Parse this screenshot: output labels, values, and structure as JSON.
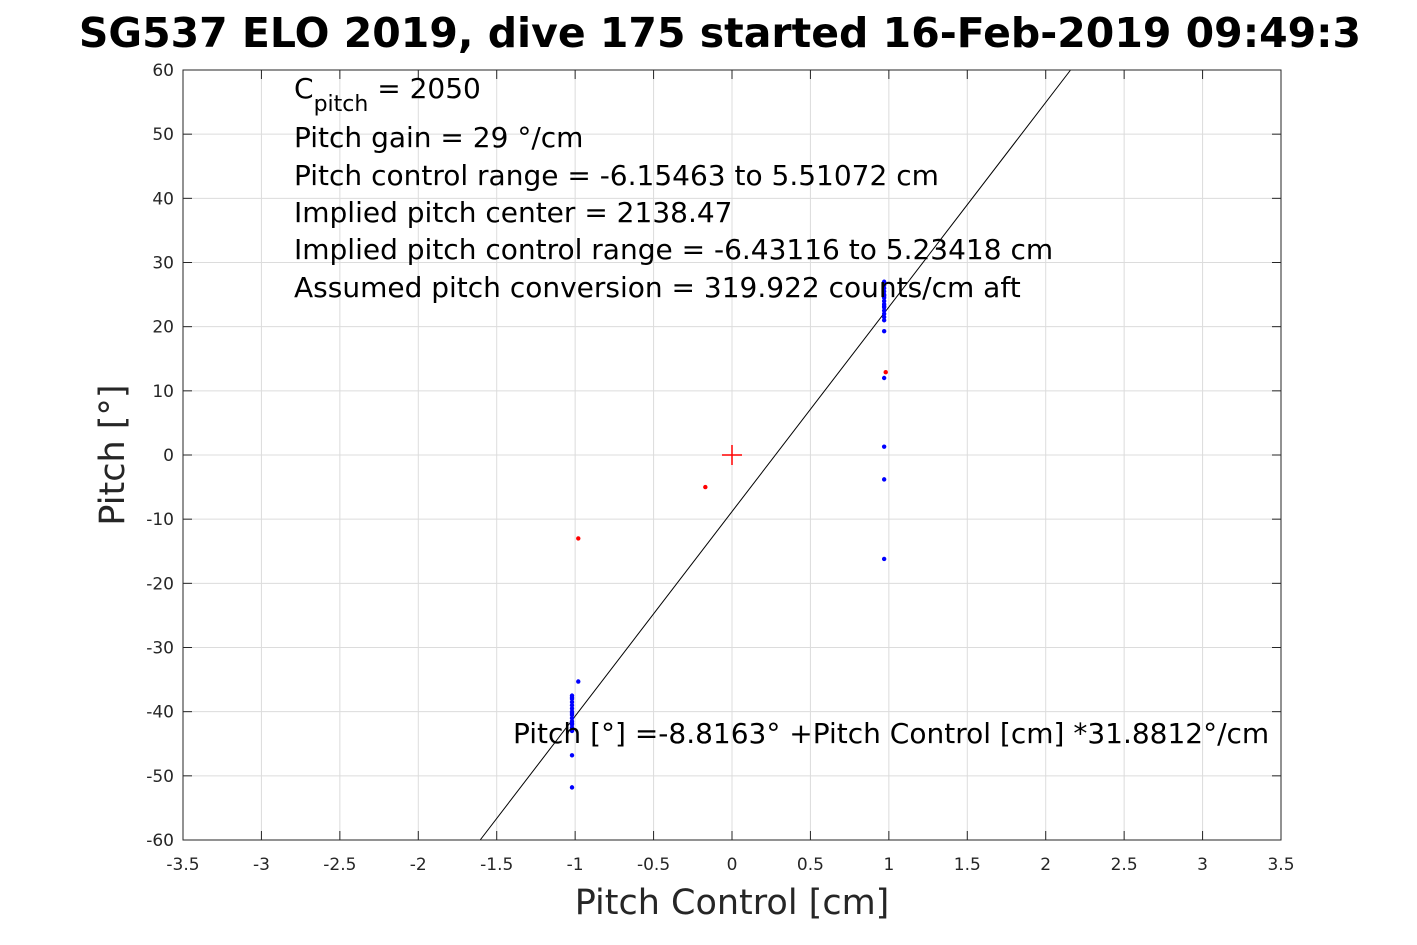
{
  "chart_data": {
    "type": "scatter",
    "title": "SG537 ELO 2019, dive 175 started 16-Feb-2019 09:49:3",
    "xlabel": "Pitch Control [cm]",
    "ylabel": "Pitch [°]",
    "xlim": [
      -3.5,
      3.5
    ],
    "ylim": [
      -60,
      60
    ],
    "xticks": [
      -3.5,
      -3,
      -2.5,
      -2,
      -1.5,
      -1,
      -0.5,
      0,
      0.5,
      1,
      1.5,
      2,
      2.5,
      3,
      3.5
    ],
    "xtick_labels": [
      "-3.5",
      "-3",
      "-2.5",
      "-2",
      "-1.5",
      "-1",
      "-0.5",
      "0",
      "0.5",
      "1",
      "1.5",
      "2",
      "2.5",
      "3",
      "3.5"
    ],
    "yticks": [
      60,
      50,
      40,
      30,
      20,
      10,
      0,
      -10,
      -20,
      -30,
      -40,
      -50,
      -60
    ],
    "ytick_labels": [
      "60",
      "50",
      "40",
      "30",
      "20",
      "10",
      "0",
      "-10",
      "-20",
      "-30",
      "-40",
      "-50",
      "-60"
    ],
    "grid": true,
    "series": [
      {
        "color": "#0000ff",
        "points": [
          [
            -1.02,
            -37.5
          ],
          [
            -1.02,
            -38.0
          ],
          [
            -1.02,
            -38.5
          ],
          [
            -1.02,
            -39.0
          ],
          [
            -1.02,
            -39.5
          ],
          [
            -1.02,
            -40.0
          ],
          [
            -1.02,
            -40.5
          ],
          [
            -1.02,
            -41.0
          ],
          [
            -1.02,
            -41.5
          ],
          [
            -1.02,
            -42.0
          ],
          [
            -1.02,
            -42.5
          ],
          [
            -1.02,
            -43.0
          ],
          [
            -1.02,
            -37.8
          ],
          [
            -1.02,
            -40.2
          ],
          [
            -1.02,
            -41.8
          ],
          [
            -0.98,
            -35.3
          ],
          [
            -1.02,
            -46.8
          ],
          [
            -1.02,
            -51.8
          ],
          [
            0.97,
            27.0
          ],
          [
            0.97,
            26.5
          ],
          [
            0.97,
            26.0
          ],
          [
            0.97,
            25.5
          ],
          [
            0.97,
            25.0
          ],
          [
            0.97,
            24.5
          ],
          [
            0.97,
            24.0
          ],
          [
            0.97,
            23.5
          ],
          [
            0.97,
            23.0
          ],
          [
            0.97,
            22.5
          ],
          [
            0.97,
            22.0
          ],
          [
            0.97,
            21.5
          ],
          [
            0.97,
            21.0
          ],
          [
            0.97,
            23.2
          ],
          [
            0.97,
            24.8
          ],
          [
            0.97,
            19.3
          ],
          [
            0.97,
            12.0
          ],
          [
            0.97,
            1.3
          ],
          [
            0.97,
            -3.8
          ],
          [
            0.97,
            -16.2
          ]
        ]
      },
      {
        "color": "#ff0000",
        "points": [
          [
            -0.98,
            -13.0
          ],
          [
            -0.17,
            -5.0
          ],
          [
            0.98,
            12.9
          ]
        ]
      }
    ],
    "center_marker": {
      "x": 0,
      "y": 0,
      "color": "#ff0000"
    },
    "fit_line": {
      "intercept": -8.8163,
      "slope": 31.8812,
      "color": "#000000"
    },
    "annotations": {
      "c_pitch_main": "C",
      "c_pitch_sub": "pitch",
      "c_pitch_value": " = 2050",
      "lines": [
        "Pitch gain = 29 °/cm",
        "Pitch control range = -6.15463 to 5.51072 cm",
        "Implied pitch center = 2138.47",
        "Implied pitch control range = -6.43116 to 5.23418 cm",
        "Assumed pitch conversion = 319.922 counts/cm aft"
      ],
      "fit_label": "Pitch [°] =-8.8163° +Pitch Control [cm] *31.8812°/cm"
    }
  }
}
